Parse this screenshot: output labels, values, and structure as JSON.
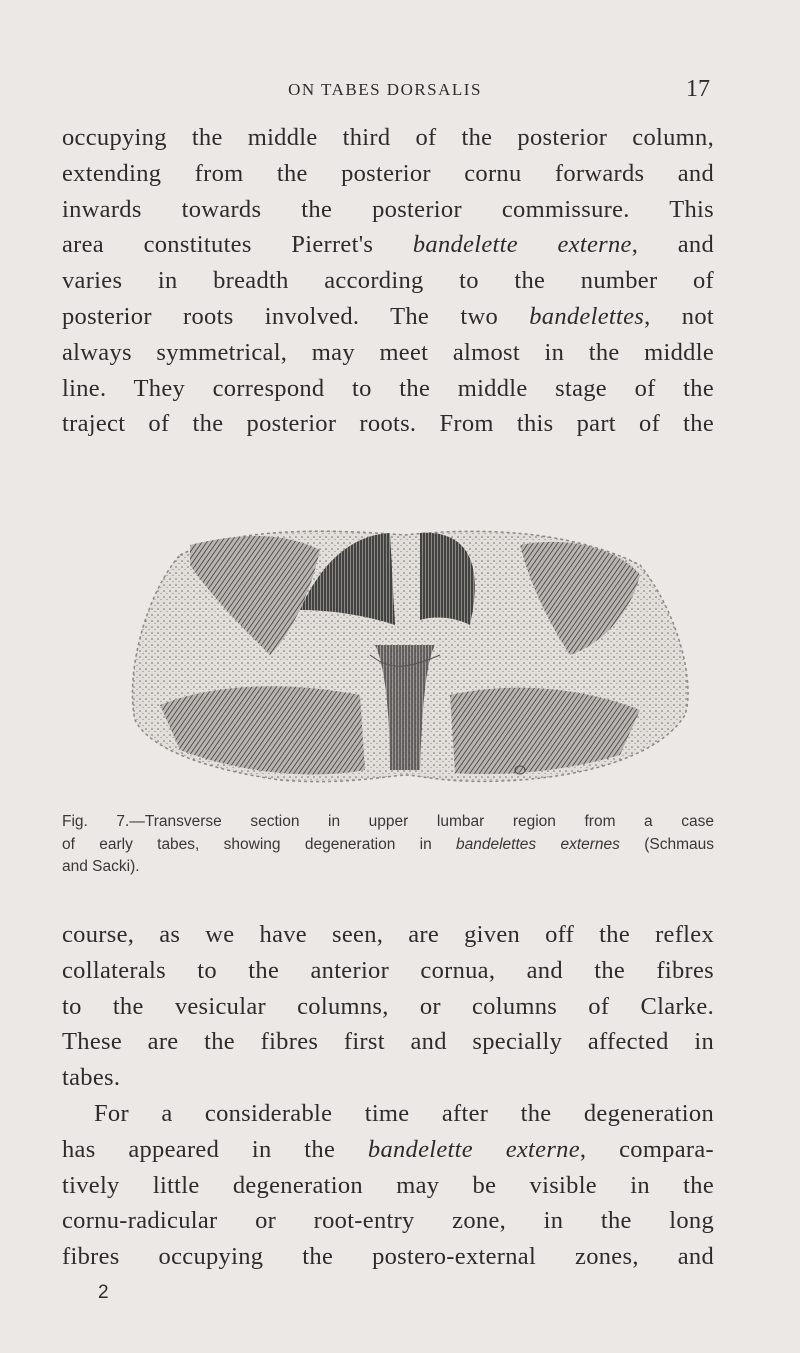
{
  "header": {
    "title": "ON TABES DORSALIS",
    "page_number": "17"
  },
  "body_top": {
    "lines": [
      [
        {
          "text": "occupying the middle third of the posterior column,"
        }
      ],
      [
        {
          "text": "extending from the posterior cornu forwards and"
        }
      ],
      [
        {
          "text": "inwards towards the posterior commissure. This"
        }
      ],
      [
        {
          "text": "area constitutes Pierret's "
        },
        {
          "text": "bandelette externe",
          "italic": true
        },
        {
          "text": ", and"
        }
      ],
      [
        {
          "text": "varies in breadth according to the number of"
        }
      ],
      [
        {
          "text": "posterior roots involved. The two "
        },
        {
          "text": "bandelettes",
          "italic": true
        },
        {
          "text": ", not"
        }
      ],
      [
        {
          "text": "always symmetrical, may meet almost in the middle"
        }
      ],
      [
        {
          "text": "line. They correspond to the middle stage of the"
        }
      ],
      [
        {
          "text": "traject of the posterior roots. From this part of the"
        }
      ]
    ]
  },
  "figure": {
    "caption": {
      "lines": [
        [
          {
            "text": "Fig. 7.—Transverse section in upper lumbar region from a case"
          }
        ],
        [
          {
            "text": "of early tabes, showing degeneration in "
          },
          {
            "text": "bandelettes externes",
            "italic": true
          },
          {
            "text": " (Schmaus"
          }
        ],
        [
          {
            "text": "and Sacki)."
          }
        ]
      ]
    }
  },
  "body_bottom": {
    "lines": [
      [
        {
          "text": "course, as we have seen, are given off the reflex"
        }
      ],
      [
        {
          "text": "collaterals to the anterior cornua, and the fibres"
        }
      ],
      [
        {
          "text": "to the vesicular columns, or columns of Clarke."
        }
      ],
      [
        {
          "text": "These are the fibres first and specially affected in"
        }
      ],
      [
        {
          "text": "tabes."
        }
      ],
      [
        {
          "text": "For a considerable time after the degeneration"
        }
      ],
      [
        {
          "text": "has appeared in the "
        },
        {
          "text": "bandelette externe",
          "italic": true
        },
        {
          "text": ", compara-"
        }
      ],
      [
        {
          "text": "tively little degeneration may be visible in the"
        }
      ],
      [
        {
          "text": "cornu-radicular or root-entry zone, in the long"
        }
      ],
      [
        {
          "text": "fibres occupying the postero-external zones, and"
        }
      ]
    ]
  },
  "footer": {
    "signature": "2"
  }
}
